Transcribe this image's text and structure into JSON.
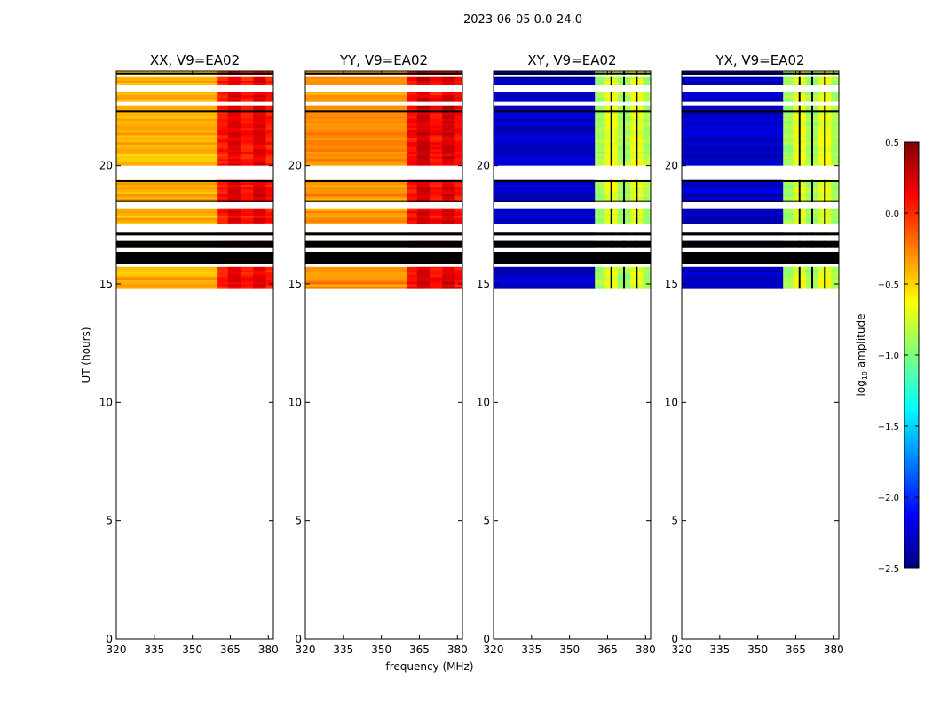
{
  "figure_title": "2023-06-05 0.0-24.0",
  "colors": {
    "colormap": [
      "#00007f",
      "#0000ff",
      "#007fff",
      "#00ffff",
      "#7fff7f",
      "#ffff00",
      "#ff7f00",
      "#ff0000",
      "#7f0000"
    ],
    "flag": "#000000",
    "missing": "#ffffff"
  },
  "chart_data": {
    "type": "heatmap",
    "shared": {
      "xlabel": "frequency (MHz)",
      "ylabel": "UT (hours)",
      "xlim": [
        320,
        382
      ],
      "ylim": [
        0,
        24
      ],
      "xticks": [
        320,
        335,
        350,
        365,
        380
      ],
      "yticks": [
        0,
        5,
        10,
        15,
        20
      ],
      "band_edges_mhz": [
        320,
        360,
        364,
        369,
        374,
        379,
        382
      ],
      "data_start_hour": 14.8,
      "data_end_hour": 24.0,
      "flagged_hours": [
        [
          15.85,
          16.35
        ],
        [
          16.55,
          16.85
        ],
        [
          17.05,
          17.2
        ]
      ],
      "missing_hours": [
        [
          15.72,
          15.85
        ],
        [
          16.35,
          16.55
        ],
        [
          16.85,
          17.05
        ],
        [
          17.2,
          17.55
        ],
        [
          18.2,
          18.45
        ],
        [
          19.4,
          20.0
        ],
        [
          22.55,
          22.7
        ],
        [
          23.1,
          23.4
        ],
        [
          23.75,
          23.85
        ]
      ]
    },
    "panels": [
      {
        "title": "XX, V9=EA02",
        "kind": "auto",
        "values": {
          "base": -0.4,
          "rfi": 0.05
        }
      },
      {
        "title": "YY, V9=EA02",
        "kind": "auto",
        "values": {
          "base": -0.3,
          "rfi": 0.1
        }
      },
      {
        "title": "XY, V9=EA02",
        "kind": "cross",
        "values": {
          "base": -2.3,
          "rfi": -0.9
        }
      },
      {
        "title": "YX, V9=EA02",
        "kind": "cross",
        "values": {
          "base": -2.3,
          "rfi": -0.9
        }
      }
    ],
    "colorbar": {
      "label": "log10 amplitude",
      "label_main": "log",
      "label_sub": "10",
      "label_rest": " amplitude",
      "range": [
        -2.5,
        0.5
      ],
      "ticks": [
        "0.5",
        "0.0",
        "−0.5",
        "−1.0",
        "−1.5",
        "−2.0",
        "−2.5"
      ],
      "tick_values": [
        0.5,
        0.0,
        -0.5,
        -1.0,
        -1.5,
        -2.0,
        -2.5
      ]
    }
  }
}
